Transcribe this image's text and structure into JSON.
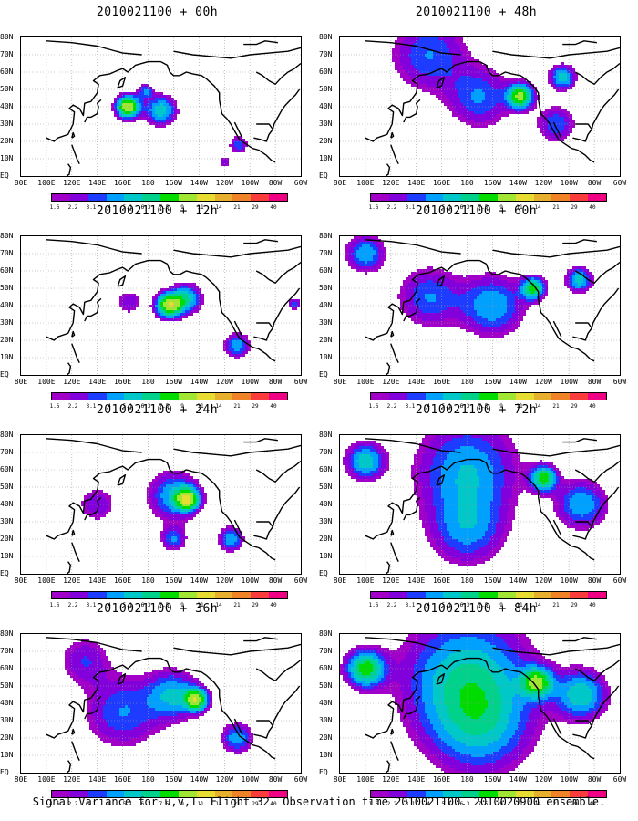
{
  "caption": "Signal Variance for u,v,T. Flight 32. Observation time 2010021100. 2010020900 ensemble.",
  "colors": {
    "palette": [
      "#a000c8",
      "#8200dc",
      "#1e3cff",
      "#00a0ff",
      "#00c8c8",
      "#00d28c",
      "#00dc00",
      "#a0e632",
      "#e6dc32",
      "#e6af2d",
      "#f08228",
      "#fa3c3c",
      "#f00082"
    ],
    "coast": "#000000",
    "grid": "#999999"
  },
  "chart_data": [
    {
      "type": "heatmap",
      "title": "2010021100 + 00h",
      "x_ticks": [
        "80E",
        "100E",
        "120E",
        "140E",
        "160E",
        "180",
        "160W",
        "140W",
        "120W",
        "100W",
        "80W",
        "60W"
      ],
      "y_ticks": [
        "80N",
        "70N",
        "60N",
        "50N",
        "40N",
        "30N",
        "20N",
        "10N",
        "EQ"
      ],
      "colorbar_labels": [
        "1.6",
        "2.2",
        "3.1",
        "4",
        "5.1",
        "6.3",
        "7.5",
        "9",
        "11",
        "14",
        "21",
        "29",
        "40"
      ],
      "blobs": [
        {
          "lon": 164,
          "lat": 40,
          "spread": 9,
          "peak": 11
        },
        {
          "lon": 190,
          "lat": 38,
          "spread": 12,
          "peak": 6
        },
        {
          "lon": 178,
          "lat": 49,
          "spread": 6,
          "peak": 4
        },
        {
          "lon": 251,
          "lat": 18,
          "spread": 7,
          "peak": 4
        },
        {
          "lon": 240,
          "lat": 8,
          "spread": 5,
          "peak": 3
        }
      ]
    },
    {
      "type": "heatmap",
      "title": "2010021100 + 48h",
      "x_ticks": [
        "80E",
        "100E",
        "120E",
        "140E",
        "160E",
        "180",
        "160W",
        "140W",
        "120W",
        "100W",
        "80W",
        "60W"
      ],
      "y_ticks": [
        "80N",
        "70N",
        "60N",
        "50N",
        "40N",
        "30N",
        "20N",
        "10N",
        "EQ"
      ],
      "colorbar_labels": [
        "1.6",
        "2.2",
        "3.1",
        "4",
        "5.1",
        "6.3",
        "7.5",
        "9",
        "11",
        "14",
        "21",
        "29",
        "40"
      ],
      "blobs": [
        {
          "lon": 222,
          "lat": 46,
          "spread": 10,
          "peak": 9
        },
        {
          "lon": 255,
          "lat": 57,
          "spread": 10,
          "peak": 6
        },
        {
          "lon": 150,
          "lat": 70,
          "spread": 30,
          "peak": 4
        },
        {
          "lon": 190,
          "lat": 45,
          "spread": 25,
          "peak": 4
        },
        {
          "lon": 250,
          "lat": 30,
          "spread": 15,
          "peak": 4
        }
      ]
    },
    {
      "type": "heatmap",
      "title": "2010021100 + 12h",
      "x_ticks": [
        "80E",
        "100E",
        "120E",
        "140E",
        "160E",
        "180",
        "160W",
        "140W",
        "120W",
        "100W",
        "80W",
        "60W"
      ],
      "y_ticks": [
        "80N",
        "70N",
        "60N",
        "50N",
        "40N",
        "30N",
        "20N",
        "10N",
        "EQ"
      ],
      "colorbar_labels": [
        "1.6",
        "2.2",
        "3.1",
        "4",
        "5.1",
        "6.3",
        "7.5",
        "9",
        "11",
        "14",
        "21",
        "29",
        "40"
      ],
      "blobs": [
        {
          "lon": 196,
          "lat": 40,
          "spread": 10,
          "peak": 10
        },
        {
          "lon": 210,
          "lat": 44,
          "spread": 12,
          "peak": 6
        },
        {
          "lon": 250,
          "lat": 17,
          "spread": 10,
          "peak": 5
        },
        {
          "lon": 295,
          "lat": 41,
          "spread": 5,
          "peak": 4
        },
        {
          "lon": 165,
          "lat": 42,
          "spread": 10,
          "peak": 3
        }
      ]
    },
    {
      "type": "heatmap",
      "title": "2010021100 + 60h",
      "x_ticks": [
        "80E",
        "100E",
        "120E",
        "140E",
        "160E",
        "180",
        "160W",
        "140W",
        "120W",
        "100W",
        "80W",
        "60W"
      ],
      "y_ticks": [
        "80N",
        "70N",
        "60N",
        "50N",
        "40N",
        "30N",
        "20N",
        "10N",
        "EQ"
      ],
      "colorbar_labels": [
        "1.6",
        "2.2",
        "3.1",
        "4",
        "5.1",
        "6.3",
        "7.5",
        "9",
        "11",
        "14",
        "21",
        "29",
        "40"
      ],
      "blobs": [
        {
          "lon": 232,
          "lat": 50,
          "spread": 9,
          "peak": 8
        },
        {
          "lon": 268,
          "lat": 55,
          "spread": 10,
          "peak": 6
        },
        {
          "lon": 100,
          "lat": 70,
          "spread": 15,
          "peak": 5
        },
        {
          "lon": 200,
          "lat": 40,
          "spread": 25,
          "peak": 5
        },
        {
          "lon": 150,
          "lat": 45,
          "spread": 25,
          "peak": 4
        }
      ]
    },
    {
      "type": "heatmap",
      "title": "2010021100 + 24h",
      "x_ticks": [
        "80E",
        "100E",
        "120E",
        "140E",
        "160E",
        "180",
        "160W",
        "140W",
        "120W",
        "100W",
        "80W",
        "60W"
      ],
      "y_ticks": [
        "80N",
        "70N",
        "60N",
        "50N",
        "40N",
        "30N",
        "20N",
        "10N",
        "EQ"
      ],
      "colorbar_labels": [
        "1.6",
        "2.2",
        "3.1",
        "4",
        "5.1",
        "6.3",
        "7.5",
        "9",
        "11",
        "14",
        "21",
        "29",
        "40"
      ],
      "blobs": [
        {
          "lon": 211,
          "lat": 43,
          "spread": 9,
          "peak": 9
        },
        {
          "lon": 200,
          "lat": 45,
          "spread": 20,
          "peak": 5
        },
        {
          "lon": 245,
          "lat": 20,
          "spread": 10,
          "peak": 5
        },
        {
          "lon": 200,
          "lat": 20,
          "spread": 10,
          "peak": 4
        },
        {
          "lon": 140,
          "lat": 40,
          "spread": 15,
          "peak": 3
        }
      ]
    },
    {
      "type": "heatmap",
      "title": "2010021100 + 72h",
      "x_ticks": [
        "80E",
        "100E",
        "120E",
        "140E",
        "160E",
        "180",
        "160W",
        "140W",
        "120W",
        "100W",
        "80W",
        "60W"
      ],
      "y_ticks": [
        "80N",
        "70N",
        "60N",
        "50N",
        "40N",
        "30N",
        "20N",
        "10N",
        "EQ"
      ],
      "colorbar_labels": [
        "1.6",
        "2.2",
        "3.1",
        "4",
        "5.1",
        "6.3",
        "7.5",
        "9",
        "11",
        "14",
        "21",
        "29",
        "40"
      ],
      "blobs": [
        {
          "lon": 240,
          "lat": 55,
          "spread": 10,
          "peak": 8
        },
        {
          "lon": 100,
          "lat": 65,
          "spread": 15,
          "peak": 6
        },
        {
          "lon": 180,
          "lat": 60,
          "spread": 40,
          "peak": 5
        },
        {
          "lon": 270,
          "lat": 40,
          "spread": 20,
          "peak": 5
        },
        {
          "lon": 180,
          "lat": 25,
          "spread": 30,
          "peak": 4
        }
      ]
    },
    {
      "type": "heatmap",
      "title": "2010021100 + 36h",
      "x_ticks": [
        "80E",
        "100E",
        "120E",
        "140E",
        "160E",
        "180",
        "160W",
        "140W",
        "120W",
        "100W",
        "80W",
        "60W"
      ],
      "y_ticks": [
        "80N",
        "70N",
        "60N",
        "50N",
        "40N",
        "30N",
        "20N",
        "10N",
        "EQ"
      ],
      "colorbar_labels": [
        "1.6",
        "2.2",
        "3.1",
        "4",
        "5.1",
        "6.3",
        "7.5",
        "9",
        "11",
        "14",
        "21",
        "29",
        "40"
      ],
      "blobs": [
        {
          "lon": 218,
          "lat": 42,
          "spread": 9,
          "peak": 9
        },
        {
          "lon": 200,
          "lat": 45,
          "spread": 20,
          "peak": 5
        },
        {
          "lon": 250,
          "lat": 20,
          "spread": 12,
          "peak": 5
        },
        {
          "lon": 160,
          "lat": 35,
          "spread": 30,
          "peak": 4
        },
        {
          "lon": 130,
          "lat": 65,
          "spread": 20,
          "peak": 3
        }
      ]
    },
    {
      "type": "heatmap",
      "title": "2010021100 + 84h",
      "x_ticks": [
        "80E",
        "100E",
        "120E",
        "140E",
        "160E",
        "180",
        "160W",
        "140W",
        "120W",
        "100W",
        "80W",
        "60W"
      ],
      "y_ticks": [
        "80N",
        "70N",
        "60N",
        "50N",
        "40N",
        "30N",
        "20N",
        "10N",
        "EQ"
      ],
      "colorbar_labels": [
        "1.6",
        "2.2",
        "3.1",
        "4",
        "5.1",
        "6.3",
        "7.5",
        "9",
        "11",
        "14",
        "21",
        "29",
        "40"
      ],
      "blobs": [
        {
          "lon": 100,
          "lat": 60,
          "spread": 15,
          "peak": 8
        },
        {
          "lon": 235,
          "lat": 52,
          "spread": 12,
          "peak": 8
        },
        {
          "lon": 180,
          "lat": 55,
          "spread": 50,
          "peak": 6
        },
        {
          "lon": 270,
          "lat": 45,
          "spread": 20,
          "peak": 6
        },
        {
          "lon": 190,
          "lat": 25,
          "spread": 40,
          "peak": 4
        }
      ]
    }
  ]
}
